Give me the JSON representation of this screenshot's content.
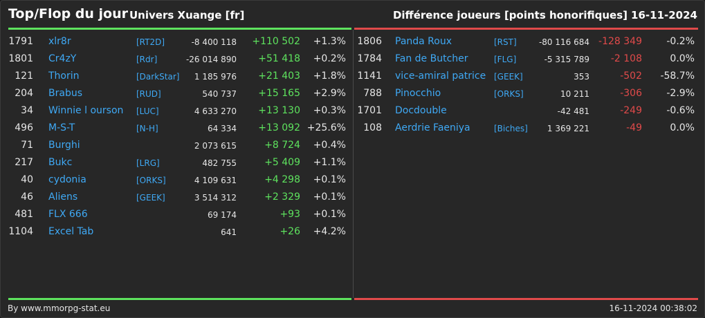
{
  "header": {
    "title": "Top/Flop du jour",
    "universe": "Univers Xuange [fr]",
    "metric": "Différence joueurs [points honorifiques]",
    "date": "16-11-2024"
  },
  "colors": {
    "positive": "#5ee35e",
    "negative": "#e04a4a",
    "link": "#3fa9f5"
  },
  "top": [
    {
      "rank": "1791",
      "name": "xlr8r",
      "alliance": "[RT2D]",
      "points": "-8 400 118",
      "diff": "+110 502",
      "pct": "+1.3%"
    },
    {
      "rank": "1801",
      "name": "Cr4zY",
      "alliance": "[Rdr]",
      "points": "-26 014 890",
      "diff": "+51 418",
      "pct": "+0.2%"
    },
    {
      "rank": "121",
      "name": "Thorin",
      "alliance": "[DarkStar]",
      "points": "1 185 976",
      "diff": "+21 403",
      "pct": "+1.8%"
    },
    {
      "rank": "204",
      "name": "Brabus",
      "alliance": "[RUD]",
      "points": "540 737",
      "diff": "+15 165",
      "pct": "+2.9%"
    },
    {
      "rank": "34",
      "name": "Winnie l ourson",
      "alliance": "[LUC]",
      "points": "4 633 270",
      "diff": "+13 130",
      "pct": "+0.3%"
    },
    {
      "rank": "496",
      "name": "M-S-T",
      "alliance": "[N-H]",
      "points": "64 334",
      "diff": "+13 092",
      "pct": "+25.6%"
    },
    {
      "rank": "71",
      "name": "Burghi",
      "alliance": "",
      "points": "2 073 615",
      "diff": "+8 724",
      "pct": "+0.4%"
    },
    {
      "rank": "217",
      "name": "Bukc",
      "alliance": "[LRG]",
      "points": "482 755",
      "diff": "+5 409",
      "pct": "+1.1%"
    },
    {
      "rank": "40",
      "name": "cydonia",
      "alliance": "[ORKS]",
      "points": "4 109 631",
      "diff": "+4 298",
      "pct": "+0.1%"
    },
    {
      "rank": "46",
      "name": "Aliens",
      "alliance": "[GEEK]",
      "points": "3 514 312",
      "diff": "+2 329",
      "pct": "+0.1%"
    },
    {
      "rank": "481",
      "name": "FLX 666",
      "alliance": "",
      "points": "69 174",
      "diff": "+93",
      "pct": "+0.1%"
    },
    {
      "rank": "1104",
      "name": "Excel Tab",
      "alliance": "",
      "points": "641",
      "diff": "+26",
      "pct": "+4.2%"
    }
  ],
  "flop": [
    {
      "rank": "1806",
      "name": "Panda Roux",
      "alliance": "[RST]",
      "points": "-80 116 684",
      "diff": "-128 349",
      "pct": "-0.2%"
    },
    {
      "rank": "1784",
      "name": "Fan de Butcher",
      "alliance": "[FLG]",
      "points": "-5 315 789",
      "diff": "-2 108",
      "pct": "0.0%"
    },
    {
      "rank": "1141",
      "name": "vice-amiral patrice",
      "alliance": "[GEEK]",
      "points": "353",
      "diff": "-502",
      "pct": "-58.7%"
    },
    {
      "rank": "788",
      "name": "Pinocchio",
      "alliance": "[ORKS]",
      "points": "10 211",
      "diff": "-306",
      "pct": "-2.9%"
    },
    {
      "rank": "1701",
      "name": "Docdouble",
      "alliance": "",
      "points": "-42 481",
      "diff": "-249",
      "pct": "-0.6%"
    },
    {
      "rank": "108",
      "name": "Aerdrie Faeniya",
      "alliance": "[Biches]",
      "points": "1 369 221",
      "diff": "-49",
      "pct": "0.0%"
    }
  ],
  "footer": {
    "credit": "By www.mmorpg-stat.eu",
    "timestamp": "16-11-2024 00:38:02"
  }
}
